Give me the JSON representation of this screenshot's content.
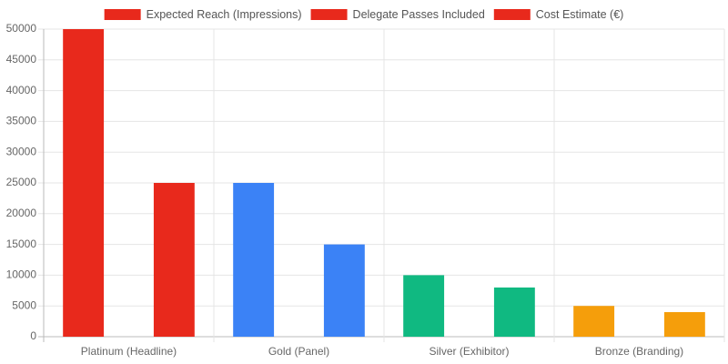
{
  "chart_data": {
    "type": "bar",
    "categories": [
      "Platinum (Headline)",
      "Gold (Panel)",
      "Silver (Exhibitor)",
      "Bronze (Branding)"
    ],
    "series": [
      {
        "name": "Expected Reach (Impressions)",
        "colors": [
          "#e8291c",
          "#3b82f6",
          "#10b981",
          "#f59e0b"
        ],
        "values": [
          50000,
          25000,
          10000,
          5000
        ]
      },
      {
        "name": "Delegate Passes Included",
        "colors": [
          "#e8291c",
          "#3b82f6",
          "#10b981",
          "#f59e0b"
        ],
        "values": [
          0,
          0,
          0,
          0
        ]
      },
      {
        "name": "Cost Estimate (€)",
        "colors": [
          "#e8291c",
          "#3b82f6",
          "#10b981",
          "#f59e0b"
        ],
        "values": [
          25000,
          15000,
          8000,
          4000
        ]
      }
    ],
    "ylim": [
      0,
      50000
    ],
    "yticks": [
      0,
      5000,
      10000,
      15000,
      20000,
      25000,
      30000,
      35000,
      40000,
      45000,
      50000
    ],
    "grid": true
  }
}
